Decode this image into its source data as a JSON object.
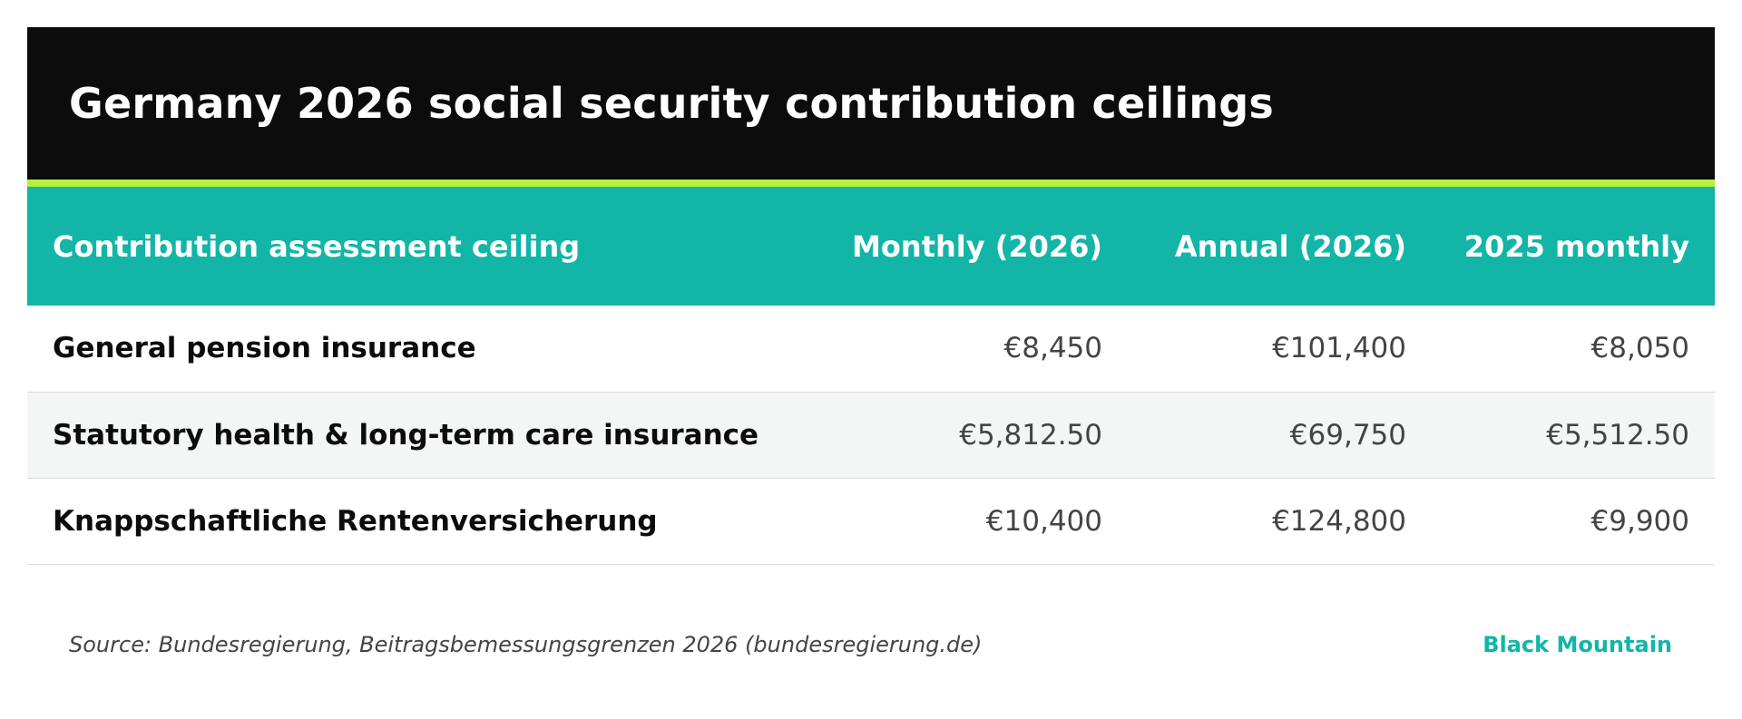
{
  "title": "Germany 2026 social security contribution ceilings",
  "colors": {
    "title_bg": "#0c0c0c",
    "accent_line": "#b6f23a",
    "header_bg": "#12b5a6",
    "brand": "#12b5a6"
  },
  "table": {
    "headers": [
      "Contribution assessment ceiling",
      "Monthly (2026)",
      "Annual (2026)",
      "2025 monthly"
    ],
    "rows": [
      {
        "label": "General pension insurance",
        "monthly_2026": "€8,450",
        "annual_2026": "€101,400",
        "monthly_2025": "€8,050"
      },
      {
        "label": "Statutory health & long-term care insurance",
        "monthly_2026": "€5,812.50",
        "annual_2026": "€69,750",
        "monthly_2025": "€5,512.50"
      },
      {
        "label": "Knappschaftliche Rentenversicherung",
        "monthly_2026": "€10,400",
        "annual_2026": "€124,800",
        "monthly_2025": "€9,900"
      }
    ]
  },
  "footer": {
    "source": "Source: Bundesregierung, Beitragsbemessungsgrenzen 2026 (bundesregierung.de)",
    "brand": "Black Mountain"
  }
}
